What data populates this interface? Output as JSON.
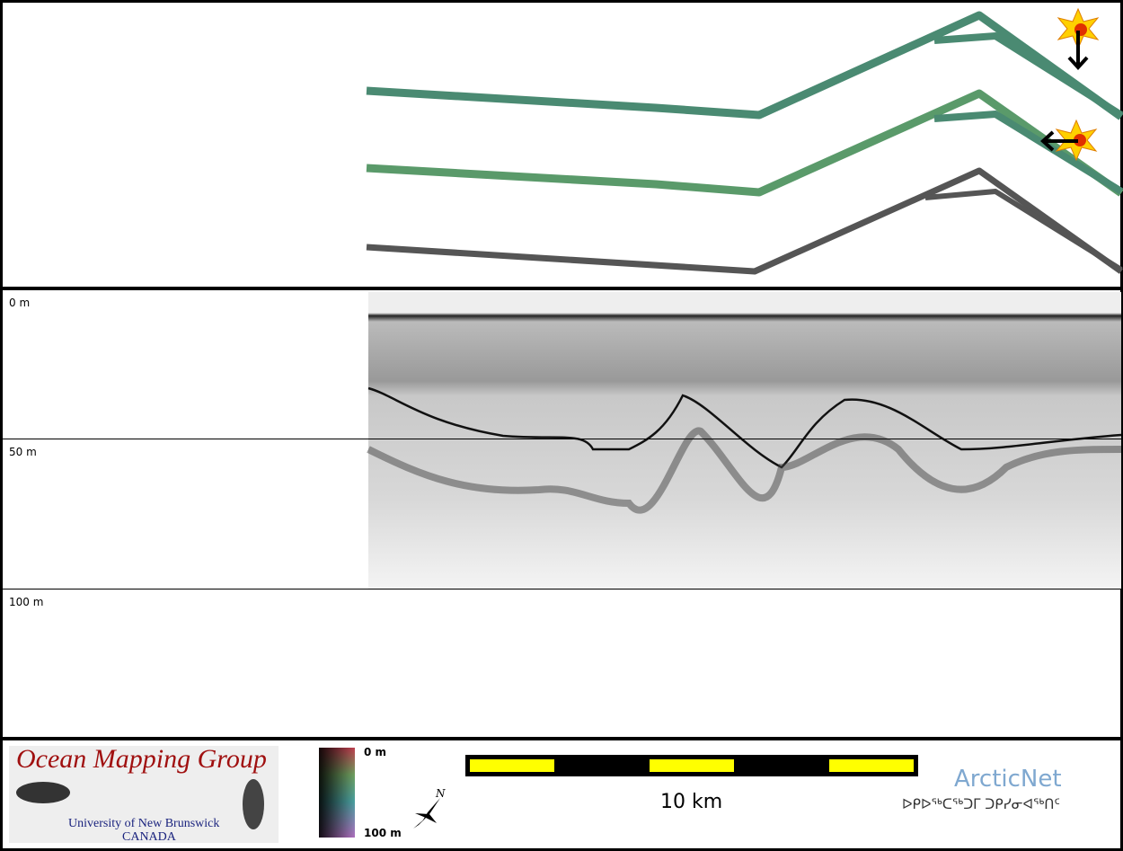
{
  "depth_axis": {
    "labels": [
      "0 m",
      "50 m",
      "100 m"
    ]
  },
  "logo": {
    "title": "Ocean Mapping Group",
    "university": "University of New Brunswick",
    "country": "CANADA"
  },
  "color_scale": {
    "top": "0 m",
    "bottom": "100 m"
  },
  "compass": {
    "north": "N"
  },
  "scale_bar": {
    "label": "10 km"
  },
  "partner": {
    "name": "ArcticNet",
    "syllabics": "ᐅᑭᐅᖅᑕᖅᑐᒥ ᑐᑭᓯᓂᐊᖅᑎᑦ"
  }
}
